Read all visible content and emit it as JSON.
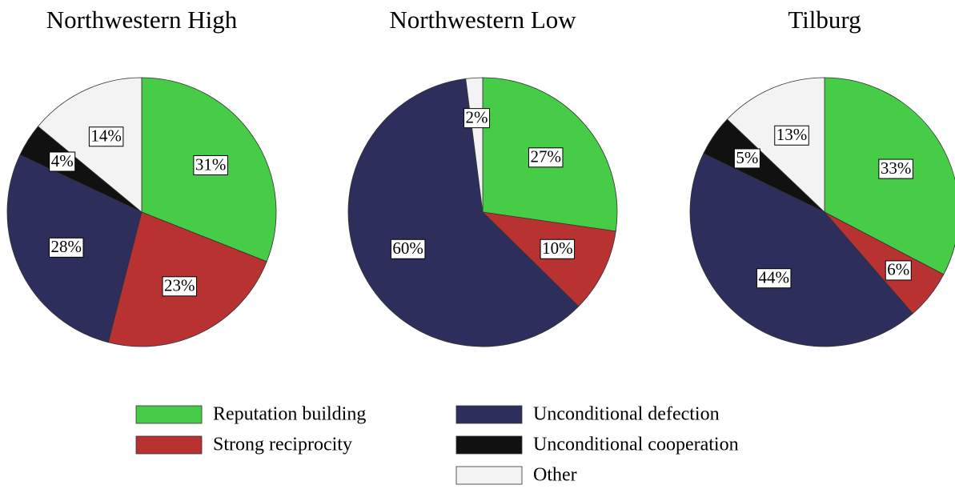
{
  "chart_data": [
    {
      "type": "pie",
      "title": "Northwestern High",
      "categories": [
        "Reputation building",
        "Strong reciprocity",
        "Unconditional defection",
        "Unconditional cooperation",
        "Other"
      ],
      "values": [
        31,
        23,
        28,
        4,
        14
      ],
      "value_labels": [
        "31%",
        "23%",
        "28%",
        "4%",
        "14%"
      ],
      "colors": [
        "#46cc46",
        "#b83232",
        "#2e2e5c",
        "#111111",
        "#f3f3f3"
      ]
    },
    {
      "type": "pie",
      "title": "Northwestern Low",
      "categories": [
        "Reputation building",
        "Strong reciprocity",
        "Unconditional defection",
        "Other"
      ],
      "values": [
        27,
        10,
        60,
        2
      ],
      "value_labels": [
        "27%",
        "10%",
        "60%",
        "2%"
      ],
      "colors": [
        "#46cc46",
        "#b83232",
        "#2e2e5c",
        "#f3f3f3"
      ]
    },
    {
      "type": "pie",
      "title": "Tilburg",
      "categories": [
        "Reputation building",
        "Strong reciprocity",
        "Unconditional defection",
        "Unconditional cooperation",
        "Other"
      ],
      "values": [
        33,
        6,
        44,
        5,
        13
      ],
      "value_labels": [
        "33%",
        "6%",
        "44%",
        "5%",
        "13%"
      ],
      "colors": [
        "#46cc46",
        "#b83232",
        "#2e2e5c",
        "#111111",
        "#f3f3f3"
      ]
    }
  ]
}
